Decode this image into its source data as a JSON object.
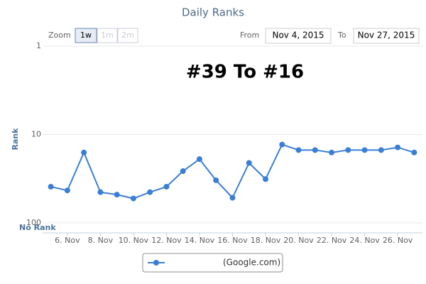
{
  "chart_data": {
    "type": "line",
    "title": "Daily Ranks",
    "annotation": "#39 To #16",
    "y_axis_label": "Rank",
    "no_rank_label": "No Rank",
    "controls": {
      "zoom_label": "Zoom",
      "zoom_buttons": [
        "1w",
        "1m",
        "2m"
      ],
      "from_label": "From",
      "from_value": "Nov 4, 2015",
      "to_label": "To",
      "to_value": "Nov 27, 2015"
    },
    "x": [
      5,
      6,
      7,
      8,
      9,
      10,
      11,
      12,
      13,
      14,
      15,
      16,
      17,
      18,
      19,
      20,
      21,
      22,
      23,
      24,
      25,
      26,
      27
    ],
    "xlim": [
      4.5,
      27.5
    ],
    "xticks": [
      {
        "value": 6,
        "label": "6. Nov"
      },
      {
        "value": 8,
        "label": "8. Nov"
      },
      {
        "value": 10,
        "label": "10. Nov"
      },
      {
        "value": 12,
        "label": "12. Nov"
      },
      {
        "value": 14,
        "label": "14. Nov"
      },
      {
        "value": 16,
        "label": "16. Nov"
      },
      {
        "value": 18,
        "label": "18. Nov"
      },
      {
        "value": 20,
        "label": "20. Nov"
      },
      {
        "value": 22,
        "label": "22. Nov"
      },
      {
        "value": 24,
        "label": "24. Nov"
      },
      {
        "value": 26,
        "label": "26. Nov"
      }
    ],
    "ylim": [
      1,
      130
    ],
    "yticks": [
      1,
      10,
      100
    ],
    "log_scale": true,
    "reversed": true,
    "grid": true,
    "series": [
      {
        "name": "(Google.com)",
        "color": "#3a7fd5",
        "values": [
          39,
          43,
          16,
          45,
          48,
          53,
          45,
          39,
          26,
          19,
          33,
          52,
          21,
          32,
          13,
          15,
          15,
          16,
          15,
          15,
          15,
          14,
          16
        ]
      }
    ]
  }
}
